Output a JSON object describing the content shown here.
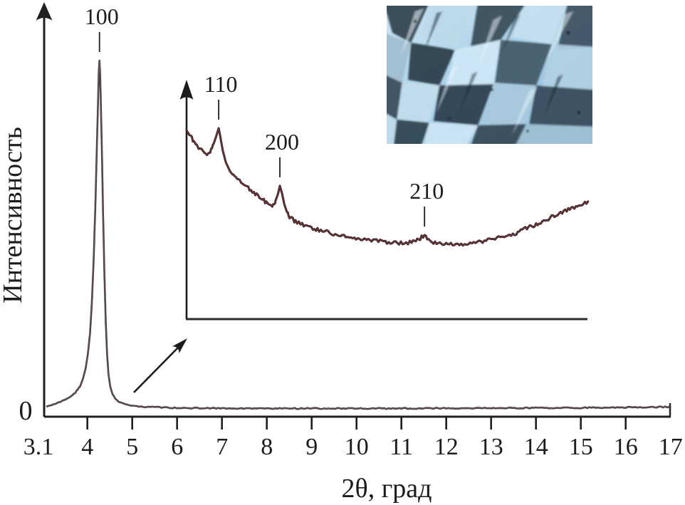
{
  "figure": {
    "background": "#ffffff",
    "axis_color": "#1f1f1f"
  },
  "chart_data": {
    "type": "line",
    "title": "",
    "xlabel": "2θ, град",
    "ylabel": "Интенсивность",
    "x_range": [
      3.1,
      17
    ],
    "x_tick_labels": [
      "3.1",
      "4",
      "5",
      "6",
      "7",
      "8",
      "9",
      "10",
      "11",
      "12",
      "13",
      "14",
      "15",
      "16",
      "17"
    ],
    "y_tick_labels": [
      "0"
    ],
    "grid": false,
    "legend": false,
    "main_series": {
      "name": "xrd-pattern",
      "color": "#3f353b",
      "peak_annotations": [
        {
          "label": "100",
          "x": 4.27
        }
      ],
      "points": [
        [
          3.1,
          2.9
        ],
        [
          3.25,
          3.4
        ],
        [
          3.4,
          4.2
        ],
        [
          3.55,
          5.0
        ],
        [
          3.67,
          6.0
        ],
        [
          3.76,
          7.2
        ],
        [
          3.84,
          8.6
        ],
        [
          3.9,
          10.6
        ],
        [
          3.96,
          13.5
        ],
        [
          4.01,
          17.5
        ],
        [
          4.06,
          23.5
        ],
        [
          4.1,
          32.0
        ],
        [
          4.14,
          44.0
        ],
        [
          4.18,
          60.0
        ],
        [
          4.21,
          75.0
        ],
        [
          4.235,
          87.0
        ],
        [
          4.255,
          97.0
        ],
        [
          4.27,
          100.0
        ],
        [
          4.285,
          96.0
        ],
        [
          4.3,
          88.0
        ],
        [
          4.325,
          74.0
        ],
        [
          4.35,
          57.0
        ],
        [
          4.38,
          40.0
        ],
        [
          4.41,
          26.5
        ],
        [
          4.44,
          17.5
        ],
        [
          4.47,
          12.0
        ],
        [
          4.51,
          8.5
        ],
        [
          4.56,
          6.3
        ],
        [
          4.62,
          5.0
        ],
        [
          4.7,
          4.2
        ],
        [
          4.8,
          3.6
        ],
        [
          4.95,
          3.2
        ],
        [
          5.15,
          2.9
        ],
        [
          5.45,
          2.7
        ],
        [
          5.9,
          2.5
        ],
        [
          6.5,
          2.4
        ],
        [
          7.2,
          2.35
        ],
        [
          8.0,
          2.3
        ],
        [
          9.0,
          2.3
        ],
        [
          10.0,
          2.3
        ],
        [
          11.0,
          2.3
        ],
        [
          12.0,
          2.35
        ],
        [
          13.0,
          2.4
        ],
        [
          14.0,
          2.45
        ],
        [
          15.0,
          2.5
        ],
        [
          16.0,
          2.6
        ],
        [
          16.6,
          2.7
        ],
        [
          16.97,
          2.75
        ]
      ]
    },
    "inset": {
      "type": "line",
      "name": "xrd-pattern-magnified",
      "color": "#2e1b1e",
      "x_range": [
        6.2,
        15.2
      ],
      "peak_annotations": [
        {
          "label": "110",
          "x": 6.92
        },
        {
          "label": "200",
          "x": 8.29
        },
        {
          "label": "210",
          "x": 11.53
        }
      ],
      "points": [
        [
          6.2,
          0.99
        ],
        [
          6.28,
          0.96
        ],
        [
          6.38,
          0.925
        ],
        [
          6.47,
          0.895
        ],
        [
          6.57,
          0.877
        ],
        [
          6.66,
          0.866
        ],
        [
          6.73,
          0.88
        ],
        [
          6.79,
          0.907
        ],
        [
          6.85,
          0.948
        ],
        [
          6.92,
          1.0
        ],
        [
          6.96,
          0.951
        ],
        [
          7.01,
          0.884
        ],
        [
          7.08,
          0.821
        ],
        [
          7.17,
          0.776
        ],
        [
          7.28,
          0.746
        ],
        [
          7.42,
          0.716
        ],
        [
          7.58,
          0.687
        ],
        [
          7.74,
          0.657
        ],
        [
          7.9,
          0.627
        ],
        [
          8.02,
          0.604
        ],
        [
          8.12,
          0.593
        ],
        [
          8.18,
          0.612
        ],
        [
          8.25,
          0.657
        ],
        [
          8.29,
          0.698
        ],
        [
          8.34,
          0.657
        ],
        [
          8.39,
          0.601
        ],
        [
          8.45,
          0.56
        ],
        [
          8.53,
          0.53
        ],
        [
          8.64,
          0.511
        ],
        [
          8.79,
          0.496
        ],
        [
          8.96,
          0.481
        ],
        [
          9.17,
          0.466
        ],
        [
          9.41,
          0.451
        ],
        [
          9.65,
          0.437
        ],
        [
          9.92,
          0.425
        ],
        [
          10.19,
          0.418
        ],
        [
          10.46,
          0.41
        ],
        [
          10.73,
          0.403
        ],
        [
          11.0,
          0.399
        ],
        [
          11.24,
          0.403
        ],
        [
          11.4,
          0.418
        ],
        [
          11.53,
          0.44
        ],
        [
          11.62,
          0.418
        ],
        [
          11.73,
          0.403
        ],
        [
          11.91,
          0.396
        ],
        [
          12.12,
          0.392
        ],
        [
          12.35,
          0.392
        ],
        [
          12.59,
          0.399
        ],
        [
          12.83,
          0.407
        ],
        [
          13.07,
          0.418
        ],
        [
          13.31,
          0.433
        ],
        [
          13.55,
          0.448
        ],
        [
          13.79,
          0.474
        ],
        [
          14.03,
          0.496
        ],
        [
          14.27,
          0.522
        ],
        [
          14.51,
          0.549
        ],
        [
          14.75,
          0.575
        ],
        [
          14.99,
          0.597
        ],
        [
          15.19,
          0.616
        ]
      ]
    }
  }
}
